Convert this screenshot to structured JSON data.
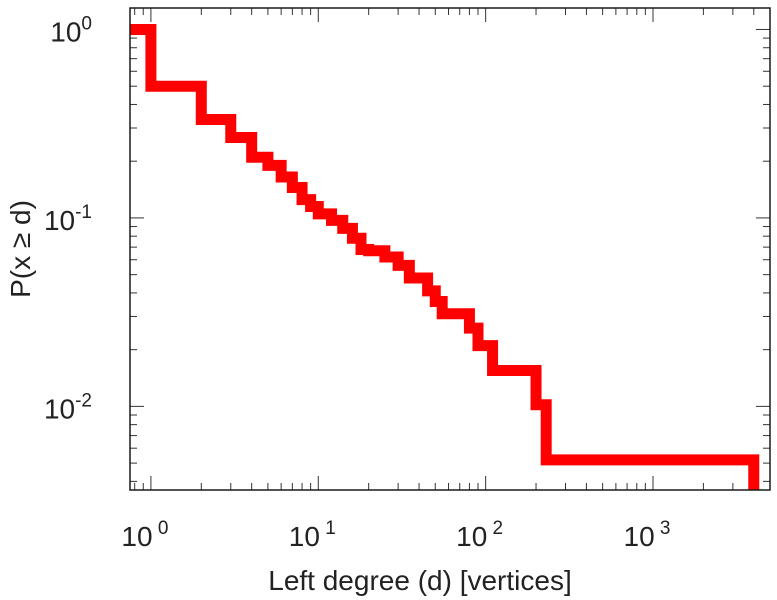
{
  "chart_data": {
    "type": "line",
    "step": true,
    "x_scale": "log",
    "y_scale": "log",
    "xlabel": "Left degree (d) [vertices]",
    "ylabel": "P(x ≥ d)",
    "xlim": [
      0.75,
      5000
    ],
    "ylim": [
      0.0036,
      1.3
    ],
    "x_ticks": [
      {
        "base": "10",
        "exp": "0",
        "value": 1
      },
      {
        "base": "10",
        "exp": "1",
        "value": 10
      },
      {
        "base": "10",
        "exp": "2",
        "value": 100
      },
      {
        "base": "10",
        "exp": "3",
        "value": 1000
      }
    ],
    "y_ticks": [
      {
        "base": "10",
        "exp": "0",
        "value": 1
      },
      {
        "base": "10",
        "exp": "-1",
        "value": 0.1
      },
      {
        "base": "10",
        "exp": "-2",
        "value": 0.01
      }
    ],
    "grid": false,
    "line_color": "#ff0000",
    "series": [
      {
        "x": [
          0.75,
          1,
          2,
          3,
          4,
          5,
          6,
          7,
          8,
          9,
          10,
          12,
          14,
          16,
          18,
          20,
          25,
          30,
          35,
          45,
          50,
          55,
          60,
          80,
          90,
          110,
          200,
          230,
          4000
        ],
        "y": [
          1.0,
          0.5,
          0.333,
          0.267,
          0.21,
          0.19,
          0.165,
          0.145,
          0.125,
          0.115,
          0.105,
          0.097,
          0.088,
          0.078,
          0.068,
          0.067,
          0.062,
          0.056,
          0.048,
          0.041,
          0.036,
          0.031,
          0.031,
          0.026,
          0.021,
          0.0155,
          0.0102,
          0.0052,
          0.0036
        ]
      }
    ]
  }
}
